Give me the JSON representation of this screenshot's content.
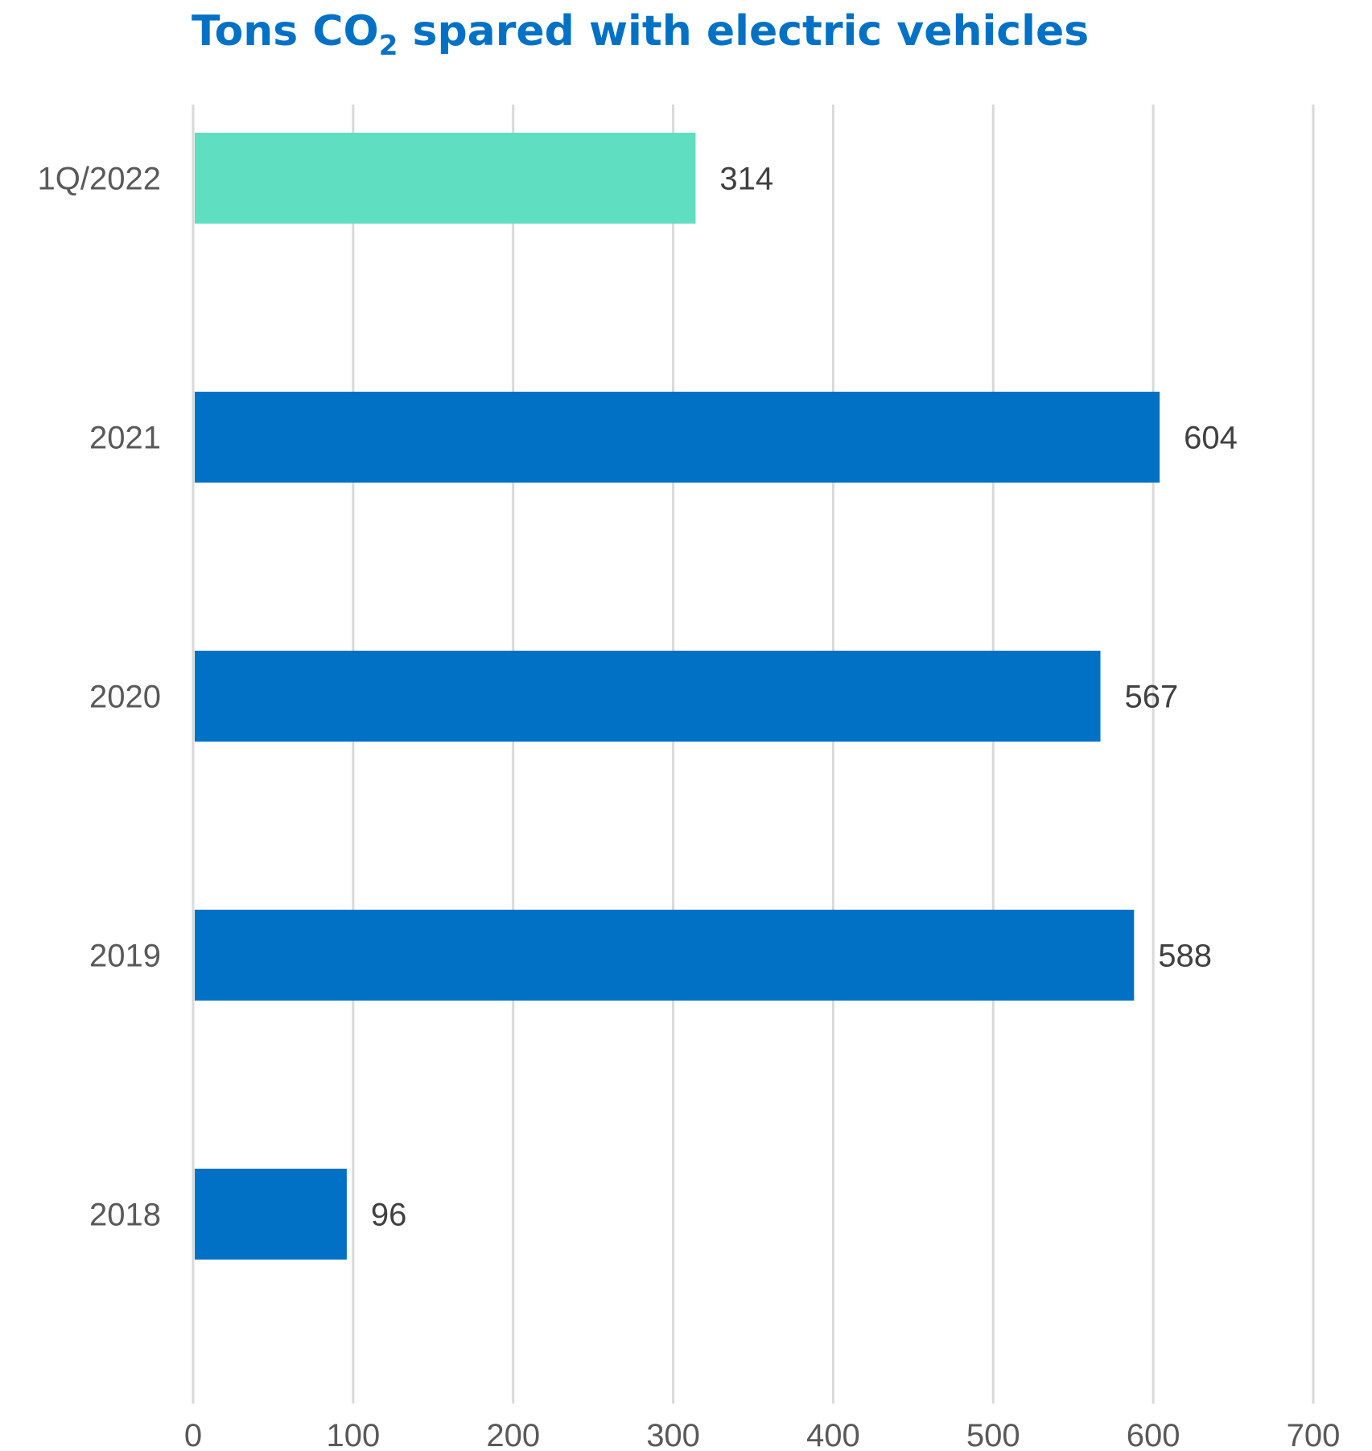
{
  "chart_data": {
    "type": "bar",
    "orientation": "horizontal",
    "title_parts": {
      "before": "Tons CO",
      "subscript": "2",
      "after": " spared with electric vehicles"
    },
    "categories": [
      "1Q/2022",
      "2021",
      "2020",
      "2019",
      "2018"
    ],
    "values": [
      314,
      604,
      567,
      588,
      96
    ],
    "xlim": [
      0,
      700
    ],
    "xticks": [
      "0",
      "100",
      "200",
      "300",
      "400",
      "500",
      "600",
      "700"
    ],
    "grid": "vertical",
    "colors": {
      "title": "#0071c5",
      "highlight_bar": "#5fdec1",
      "bar": "#0071c5",
      "grid": "#d9d9d9",
      "category_text": "#595959",
      "value_text": "#404040",
      "tick_text": "#595959"
    },
    "bar_colors": [
      "highlight_bar",
      "bar",
      "bar",
      "bar",
      "bar"
    ]
  }
}
